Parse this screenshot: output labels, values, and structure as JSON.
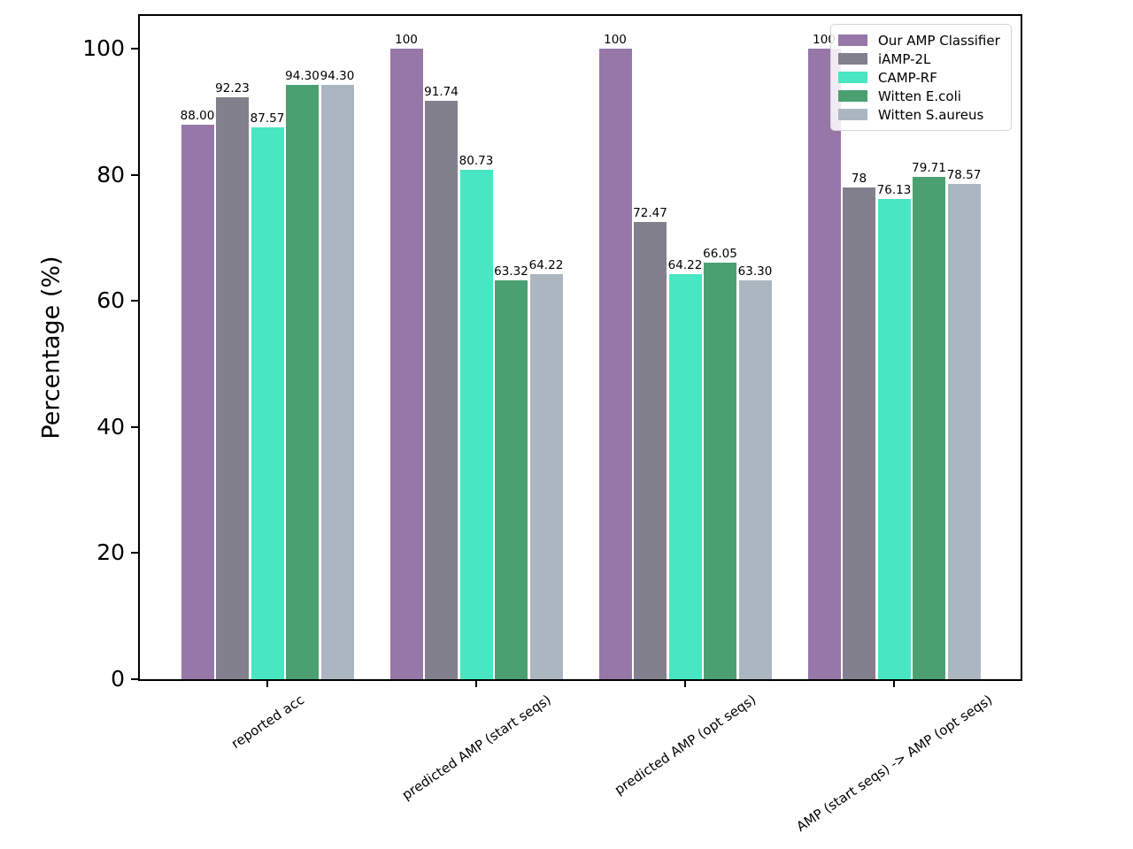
{
  "chart_data": {
    "type": "bar",
    "title": "",
    "xlabel": "",
    "ylabel": "Percentage (%)",
    "ylim": [
      0,
      105.2
    ],
    "yticks": [
      0,
      20,
      40,
      60,
      80,
      100
    ],
    "grid": false,
    "legend_position": "upper right",
    "categories": [
      "reported acc",
      "predicted AMP (start seqs)",
      "predicted AMP (opt seqs)",
      "AMP (start seqs) -> AMP (opt seqs)"
    ],
    "series": [
      {
        "name": "Our AMP Classifier",
        "color": "#9777a8",
        "values": [
          88.0,
          100,
          100,
          100
        ],
        "labels": [
          "88.00",
          "100",
          "100",
          "100"
        ]
      },
      {
        "name": "iAMP-2L",
        "color": "#82808c",
        "values": [
          92.23,
          91.74,
          72.47,
          78
        ],
        "labels": [
          "92.23",
          "91.74",
          "72.47",
          "78"
        ]
      },
      {
        "name": "CAMP-RF",
        "color": "#48e6c2",
        "values": [
          87.57,
          80.73,
          64.22,
          76.13
        ],
        "labels": [
          "87.57",
          "80.73",
          "64.22",
          "76.13"
        ]
      },
      {
        "name": "Witten E.coli",
        "color": "#4aa071",
        "values": [
          94.3,
          63.32,
          66.05,
          79.71
        ],
        "labels": [
          "94.30",
          "63.32",
          "66.05",
          "79.71"
        ]
      },
      {
        "name": "Witten S.aureus",
        "color": "#acb6c0",
        "values": [
          94.3,
          64.22,
          63.3,
          78.57
        ],
        "labels": [
          "94.30",
          "64.22",
          "63.30",
          "78.57"
        ]
      }
    ],
    "axis_color": "#000000"
  }
}
